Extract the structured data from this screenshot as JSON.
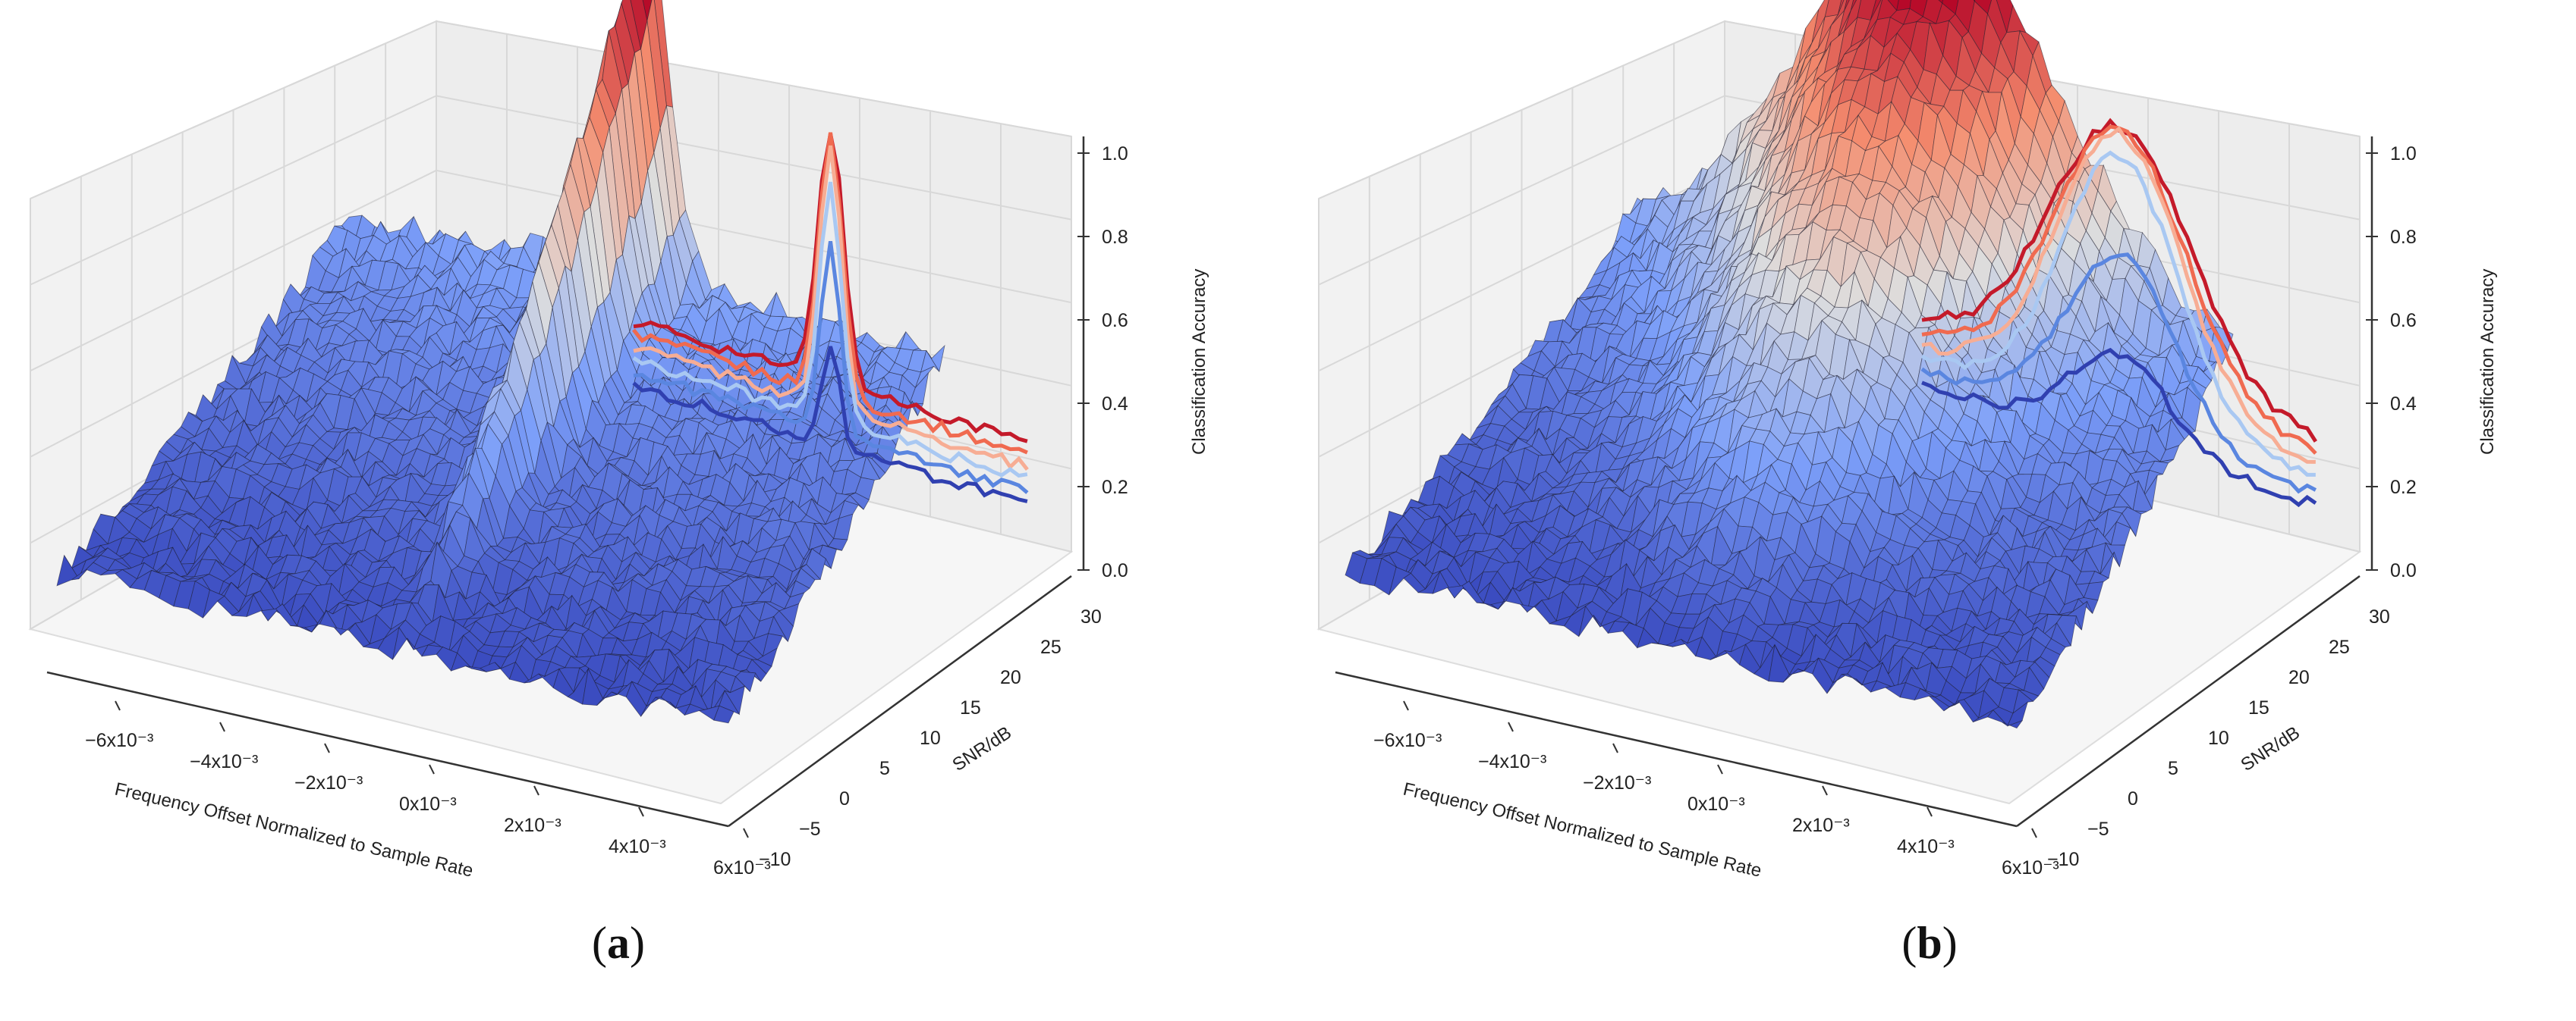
{
  "chart_data": [
    {
      "type": "surface3d",
      "panel": "(a)",
      "panel_letter": "a",
      "xlabel": "Frequency Offset Normalized to Sample Rate",
      "ylabel": "SNR/dB",
      "zlabel": "Classification Accuracy",
      "x_ticks": [
        "−6x10⁻³",
        "−4x10⁻³",
        "−2x10⁻³",
        "0x10⁻³",
        "2x10⁻³",
        "4x10⁻³",
        "6x10⁻³"
      ],
      "y_ticks": [
        "−10",
        "−5",
        "0",
        "5",
        "10",
        "15",
        "20",
        "25",
        "30"
      ],
      "z_ticks": [
        "0.0",
        "0.2",
        "0.4",
        "0.6",
        "0.8",
        "1.0"
      ],
      "xlim": [
        -0.0075,
        0.0075
      ],
      "ylim": [
        -10,
        30
      ],
      "zlim": [
        0,
        1
      ],
      "colormap": "coolwarm",
      "peak_accuracy": 0.95,
      "peak_width": 0.0004,
      "projection_lines": [
        {
          "snr": 30,
          "color": "#c41a2a",
          "peak": 0.95
        },
        {
          "snr": 25,
          "color": "#f06a50",
          "peak": 0.93
        },
        {
          "snr": 20,
          "color": "#f7ad94",
          "peak": 0.9
        },
        {
          "snr": 15,
          "color": "#a9c8f2",
          "peak": 0.8
        },
        {
          "snr": 10,
          "color": "#5a86e0",
          "peak": 0.66
        },
        {
          "snr": 5,
          "color": "#3040b0",
          "peak": 0.38
        }
      ]
    },
    {
      "type": "surface3d",
      "panel": "(b)",
      "panel_letter": "b",
      "xlabel": "Frequency Offset Normalized to Sample Rate",
      "ylabel": "SNR/dB",
      "zlabel": "Classification Accuracy",
      "x_ticks": [
        "−6x10⁻³",
        "−4x10⁻³",
        "−2x10⁻³",
        "0x10⁻³",
        "2x10⁻³",
        "4x10⁻³",
        "6x10⁻³"
      ],
      "y_ticks": [
        "−10",
        "−5",
        "0",
        "5",
        "10",
        "15",
        "20",
        "25",
        "30"
      ],
      "z_ticks": [
        "0.0",
        "0.2",
        "0.4",
        "0.6",
        "0.8",
        "1.0"
      ],
      "xlim": [
        -0.0075,
        0.0075
      ],
      "ylim": [
        -10,
        30
      ],
      "zlim": [
        0,
        1
      ],
      "colormap": "coolwarm",
      "peak_accuracy": 0.96,
      "peak_width": 0.0022,
      "projection_lines": [
        {
          "snr": 30,
          "color": "#c41a2a",
          "peak": 0.96
        },
        {
          "snr": 25,
          "color": "#f06a50",
          "peak": 0.95
        },
        {
          "snr": 20,
          "color": "#f7ad94",
          "peak": 0.94
        },
        {
          "snr": 15,
          "color": "#a9c8f2",
          "peak": 0.88
        },
        {
          "snr": 10,
          "color": "#5a86e0",
          "peak": 0.62
        },
        {
          "snr": 5,
          "color": "#3040b0",
          "peak": 0.36
        }
      ]
    }
  ]
}
